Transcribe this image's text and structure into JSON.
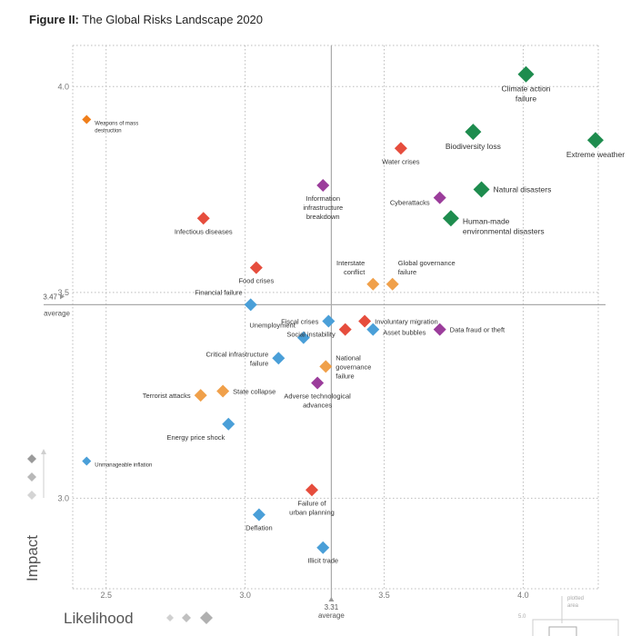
{
  "title": {
    "lead": "Figure II:",
    "text": "The Global Risks Landscape 2020"
  },
  "colors": {
    "economic": "#4a9fd8",
    "environmental": "#1e8c4e",
    "geopolitical": "#f0a04a",
    "societal": "#e64d3d",
    "technological": "#9b3d9b",
    "weapons": "#f07e1a",
    "grid": "#bcbcbc"
  },
  "chart_data": {
    "type": "scatter",
    "xlabel": "Likelihood",
    "ylabel": "Impact",
    "xlim": [
      2.38,
      4.27
    ],
    "ylim": [
      2.78,
      4.1
    ],
    "x_ticks": [
      "2.5",
      "3.0",
      "3.5",
      "4.0"
    ],
    "y_ticks": [
      "3.0",
      "3.5",
      "4.0"
    ],
    "x_average": {
      "value": 3.31,
      "label": "3.31",
      "sublabel": "average"
    },
    "y_average": {
      "value": 3.47,
      "label": "3.47",
      "sublabel": "average"
    },
    "grid": true,
    "legend_scale": {
      "label": "Likelihood"
    },
    "inset": {
      "label_a": "plotted",
      "label_b": "area",
      "tick": "5.0"
    },
    "points": [
      {
        "lines": [
          "Climate action",
          "failure"
        ],
        "x": 4.01,
        "y": 4.03,
        "cat": "environmental",
        "size": "large",
        "lp": "below"
      },
      {
        "lines": [
          "Biodiversity loss"
        ],
        "x": 3.82,
        "y": 3.89,
        "cat": "environmental",
        "size": "large",
        "lp": "below"
      },
      {
        "lines": [
          "Extreme weather"
        ],
        "x": 4.26,
        "y": 3.87,
        "cat": "environmental",
        "size": "large",
        "lp": "below"
      },
      {
        "lines": [
          "Water crises"
        ],
        "x": 3.56,
        "y": 3.85,
        "cat": "societal",
        "size": "mid",
        "lp": "below"
      },
      {
        "lines": [
          "Natural disasters"
        ],
        "x": 3.85,
        "y": 3.75,
        "cat": "environmental",
        "size": "large",
        "lp": "right"
      },
      {
        "lines": [
          "Cyberattacks"
        ],
        "x": 3.7,
        "y": 3.73,
        "cat": "technological",
        "size": "mid",
        "lp": "left-below"
      },
      {
        "lines": [
          "Human-made",
          "environmental disasters"
        ],
        "x": 3.74,
        "y": 3.68,
        "cat": "environmental",
        "size": "large",
        "lp": "right-below"
      },
      {
        "lines": [
          "Information",
          "infrastructure",
          "breakdown"
        ],
        "x": 3.28,
        "y": 3.76,
        "cat": "technological",
        "size": "mid",
        "lp": "below"
      },
      {
        "lines": [
          "Weapons of mass",
          "destruction"
        ],
        "x": 2.43,
        "y": 3.92,
        "cat": "weapons",
        "size": "small",
        "lp": "right-below"
      },
      {
        "lines": [
          "Infectious diseases"
        ],
        "x": 2.85,
        "y": 3.68,
        "cat": "societal",
        "size": "mid",
        "lp": "below"
      },
      {
        "lines": [
          "Food crises"
        ],
        "x": 3.04,
        "y": 3.56,
        "cat": "societal",
        "size": "mid",
        "lp": "below"
      },
      {
        "lines": [
          "Interstate",
          "conflict"
        ],
        "x": 3.46,
        "y": 3.52,
        "cat": "geopolitical",
        "size": "mid",
        "lp": "above-left"
      },
      {
        "lines": [
          "Global governance",
          "failure"
        ],
        "x": 3.53,
        "y": 3.52,
        "cat": "geopolitical",
        "size": "mid",
        "lp": "above-right"
      },
      {
        "lines": [
          "Financial failure"
        ],
        "x": 3.02,
        "y": 3.47,
        "cat": "economic",
        "size": "mid",
        "lp": "above-left"
      },
      {
        "lines": [
          "Fiscal crises"
        ],
        "x": 3.3,
        "y": 3.43,
        "cat": "economic",
        "size": "mid",
        "lp": "left"
      },
      {
        "lines": [
          "Involuntary migration"
        ],
        "x": 3.43,
        "y": 3.43,
        "cat": "societal",
        "size": "mid",
        "lp": "right"
      },
      {
        "lines": [
          "Social instability"
        ],
        "x": 3.36,
        "y": 3.41,
        "cat": "societal",
        "size": "mid",
        "lp": "left-below"
      },
      {
        "lines": [
          "Asset bubbles"
        ],
        "x": 3.46,
        "y": 3.41,
        "cat": "economic",
        "size": "mid",
        "lp": "right-below"
      },
      {
        "lines": [
          "Data fraud or theft"
        ],
        "x": 3.7,
        "y": 3.41,
        "cat": "technological",
        "size": "mid",
        "lp": "right"
      },
      {
        "lines": [
          "Unemployment"
        ],
        "x": 3.21,
        "y": 3.39,
        "cat": "economic",
        "size": "mid",
        "lp": "above-left"
      },
      {
        "lines": [
          "Critical infrastructure",
          "failure"
        ],
        "x": 3.12,
        "y": 3.34,
        "cat": "economic",
        "size": "mid",
        "lp": "left"
      },
      {
        "lines": [
          "National",
          "governance",
          "failure"
        ],
        "x": 3.29,
        "y": 3.32,
        "cat": "geopolitical",
        "size": "mid",
        "lp": "right"
      },
      {
        "lines": [
          "Adverse technological",
          "advances"
        ],
        "x": 3.26,
        "y": 3.28,
        "cat": "technological",
        "size": "mid",
        "lp": "below"
      },
      {
        "lines": [
          "State collapse"
        ],
        "x": 2.92,
        "y": 3.26,
        "cat": "geopolitical",
        "size": "mid",
        "lp": "right"
      },
      {
        "lines": [
          "Terrorist attacks"
        ],
        "x": 2.84,
        "y": 3.25,
        "cat": "geopolitical",
        "size": "mid",
        "lp": "left"
      },
      {
        "lines": [
          "Energy price shock"
        ],
        "x": 2.94,
        "y": 3.18,
        "cat": "economic",
        "size": "mid",
        "lp": "below-left"
      },
      {
        "lines": [
          "Unmanageable inflation"
        ],
        "x": 2.43,
        "y": 3.09,
        "cat": "economic",
        "size": "small",
        "lp": "right-below"
      },
      {
        "lines": [
          "Failure of",
          "urban planning"
        ],
        "x": 3.24,
        "y": 3.02,
        "cat": "societal",
        "size": "mid",
        "lp": "below"
      },
      {
        "lines": [
          "Deflation"
        ],
        "x": 3.05,
        "y": 2.96,
        "cat": "economic",
        "size": "mid",
        "lp": "below"
      },
      {
        "lines": [
          "Illicit trade"
        ],
        "x": 3.28,
        "y": 2.88,
        "cat": "economic",
        "size": "mid",
        "lp": "below"
      }
    ]
  }
}
